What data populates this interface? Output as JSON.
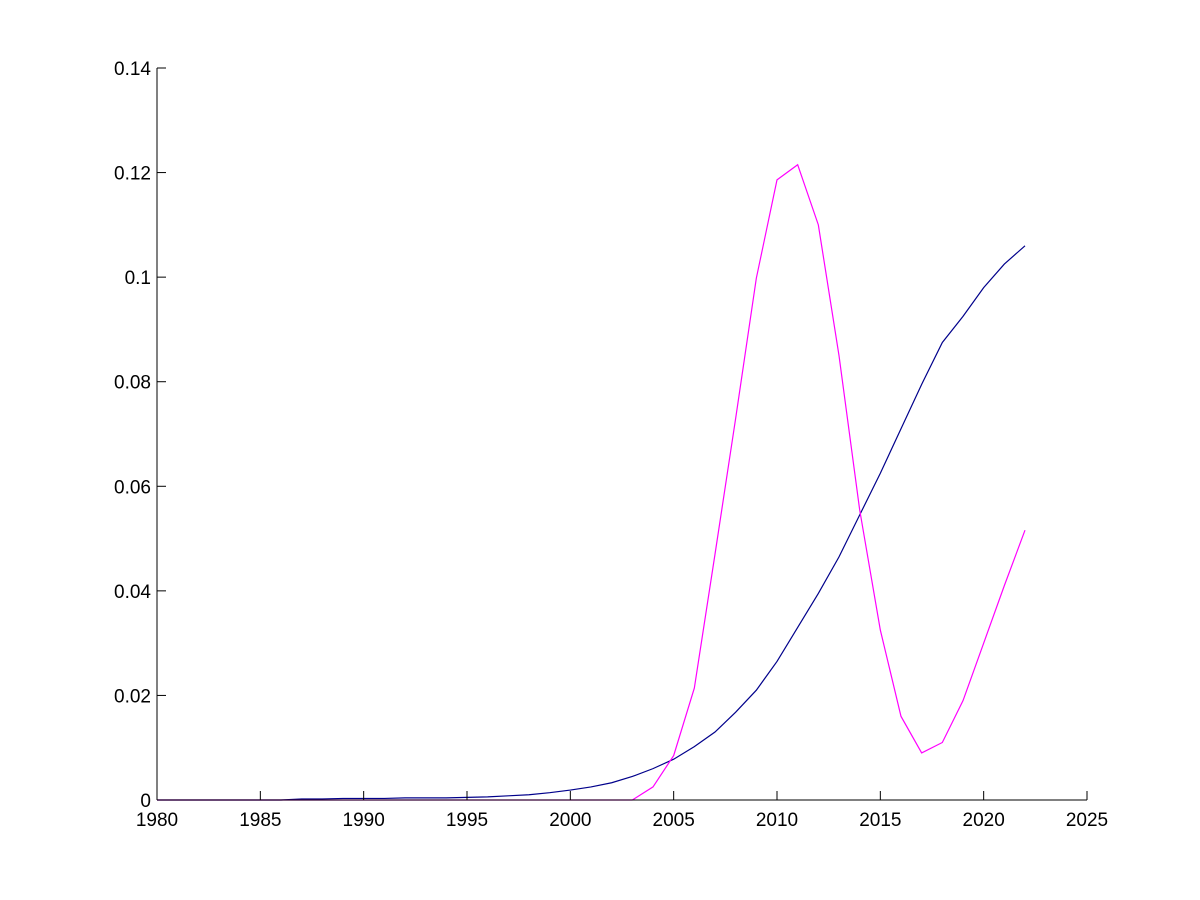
{
  "chart_data": {
    "type": "line",
    "x": [
      1980,
      1981,
      1982,
      1983,
      1984,
      1985,
      1986,
      1987,
      1988,
      1989,
      1990,
      1991,
      1992,
      1993,
      1994,
      1995,
      1996,
      1997,
      1998,
      1999,
      2000,
      2001,
      2002,
      2003,
      2004,
      2005,
      2006,
      2007,
      2008,
      2009,
      2010,
      2011,
      2012,
      2013,
      2014,
      2015,
      2016,
      2017,
      2018,
      2019,
      2020,
      2021,
      2022
    ],
    "series": [
      {
        "color": "#00008b",
        "values": [
          0,
          0,
          0,
          0,
          0,
          0,
          0,
          0.0002,
          0.0002,
          0.0003,
          0.0003,
          0.0003,
          0.0004,
          0.0004,
          0.0004,
          0.0005,
          0.0006,
          0.0008,
          0.001,
          0.0014,
          0.0019,
          0.0025,
          0.0033,
          0.0045,
          0.006,
          0.0078,
          0.0102,
          0.013,
          0.0168,
          0.021,
          0.0265,
          0.033,
          0.0395,
          0.0465,
          0.0545,
          0.0625,
          0.071,
          0.0795,
          0.0875,
          0.0925,
          0.098,
          0.1025,
          0.106
        ]
      },
      {
        "color": "#ff00ff",
        "values": [
          0,
          0,
          0,
          0,
          0,
          0,
          0,
          0,
          0,
          0,
          0,
          0,
          0,
          0,
          0,
          0,
          0,
          0,
          0,
          0,
          0,
          0,
          0,
          0,
          0.0025,
          0.0085,
          0.0214,
          0.047,
          0.073,
          0.0998,
          0.1186,
          0.1215,
          0.11,
          0.085,
          0.0555,
          0.0325,
          0.016,
          0.009,
          0.011,
          0.019,
          0.03,
          0.041,
          0.0516
        ]
      }
    ],
    "xlim": [
      1980,
      2025
    ],
    "xticks": [
      1980,
      1985,
      1990,
      1995,
      2000,
      2005,
      2010,
      2015,
      2020,
      2025
    ],
    "ylim": [
      0,
      0.14
    ],
    "yticks": [
      0,
      0.02,
      0.04,
      0.06,
      0.08,
      0.1,
      0.12,
      0.14
    ],
    "grid": false
  }
}
